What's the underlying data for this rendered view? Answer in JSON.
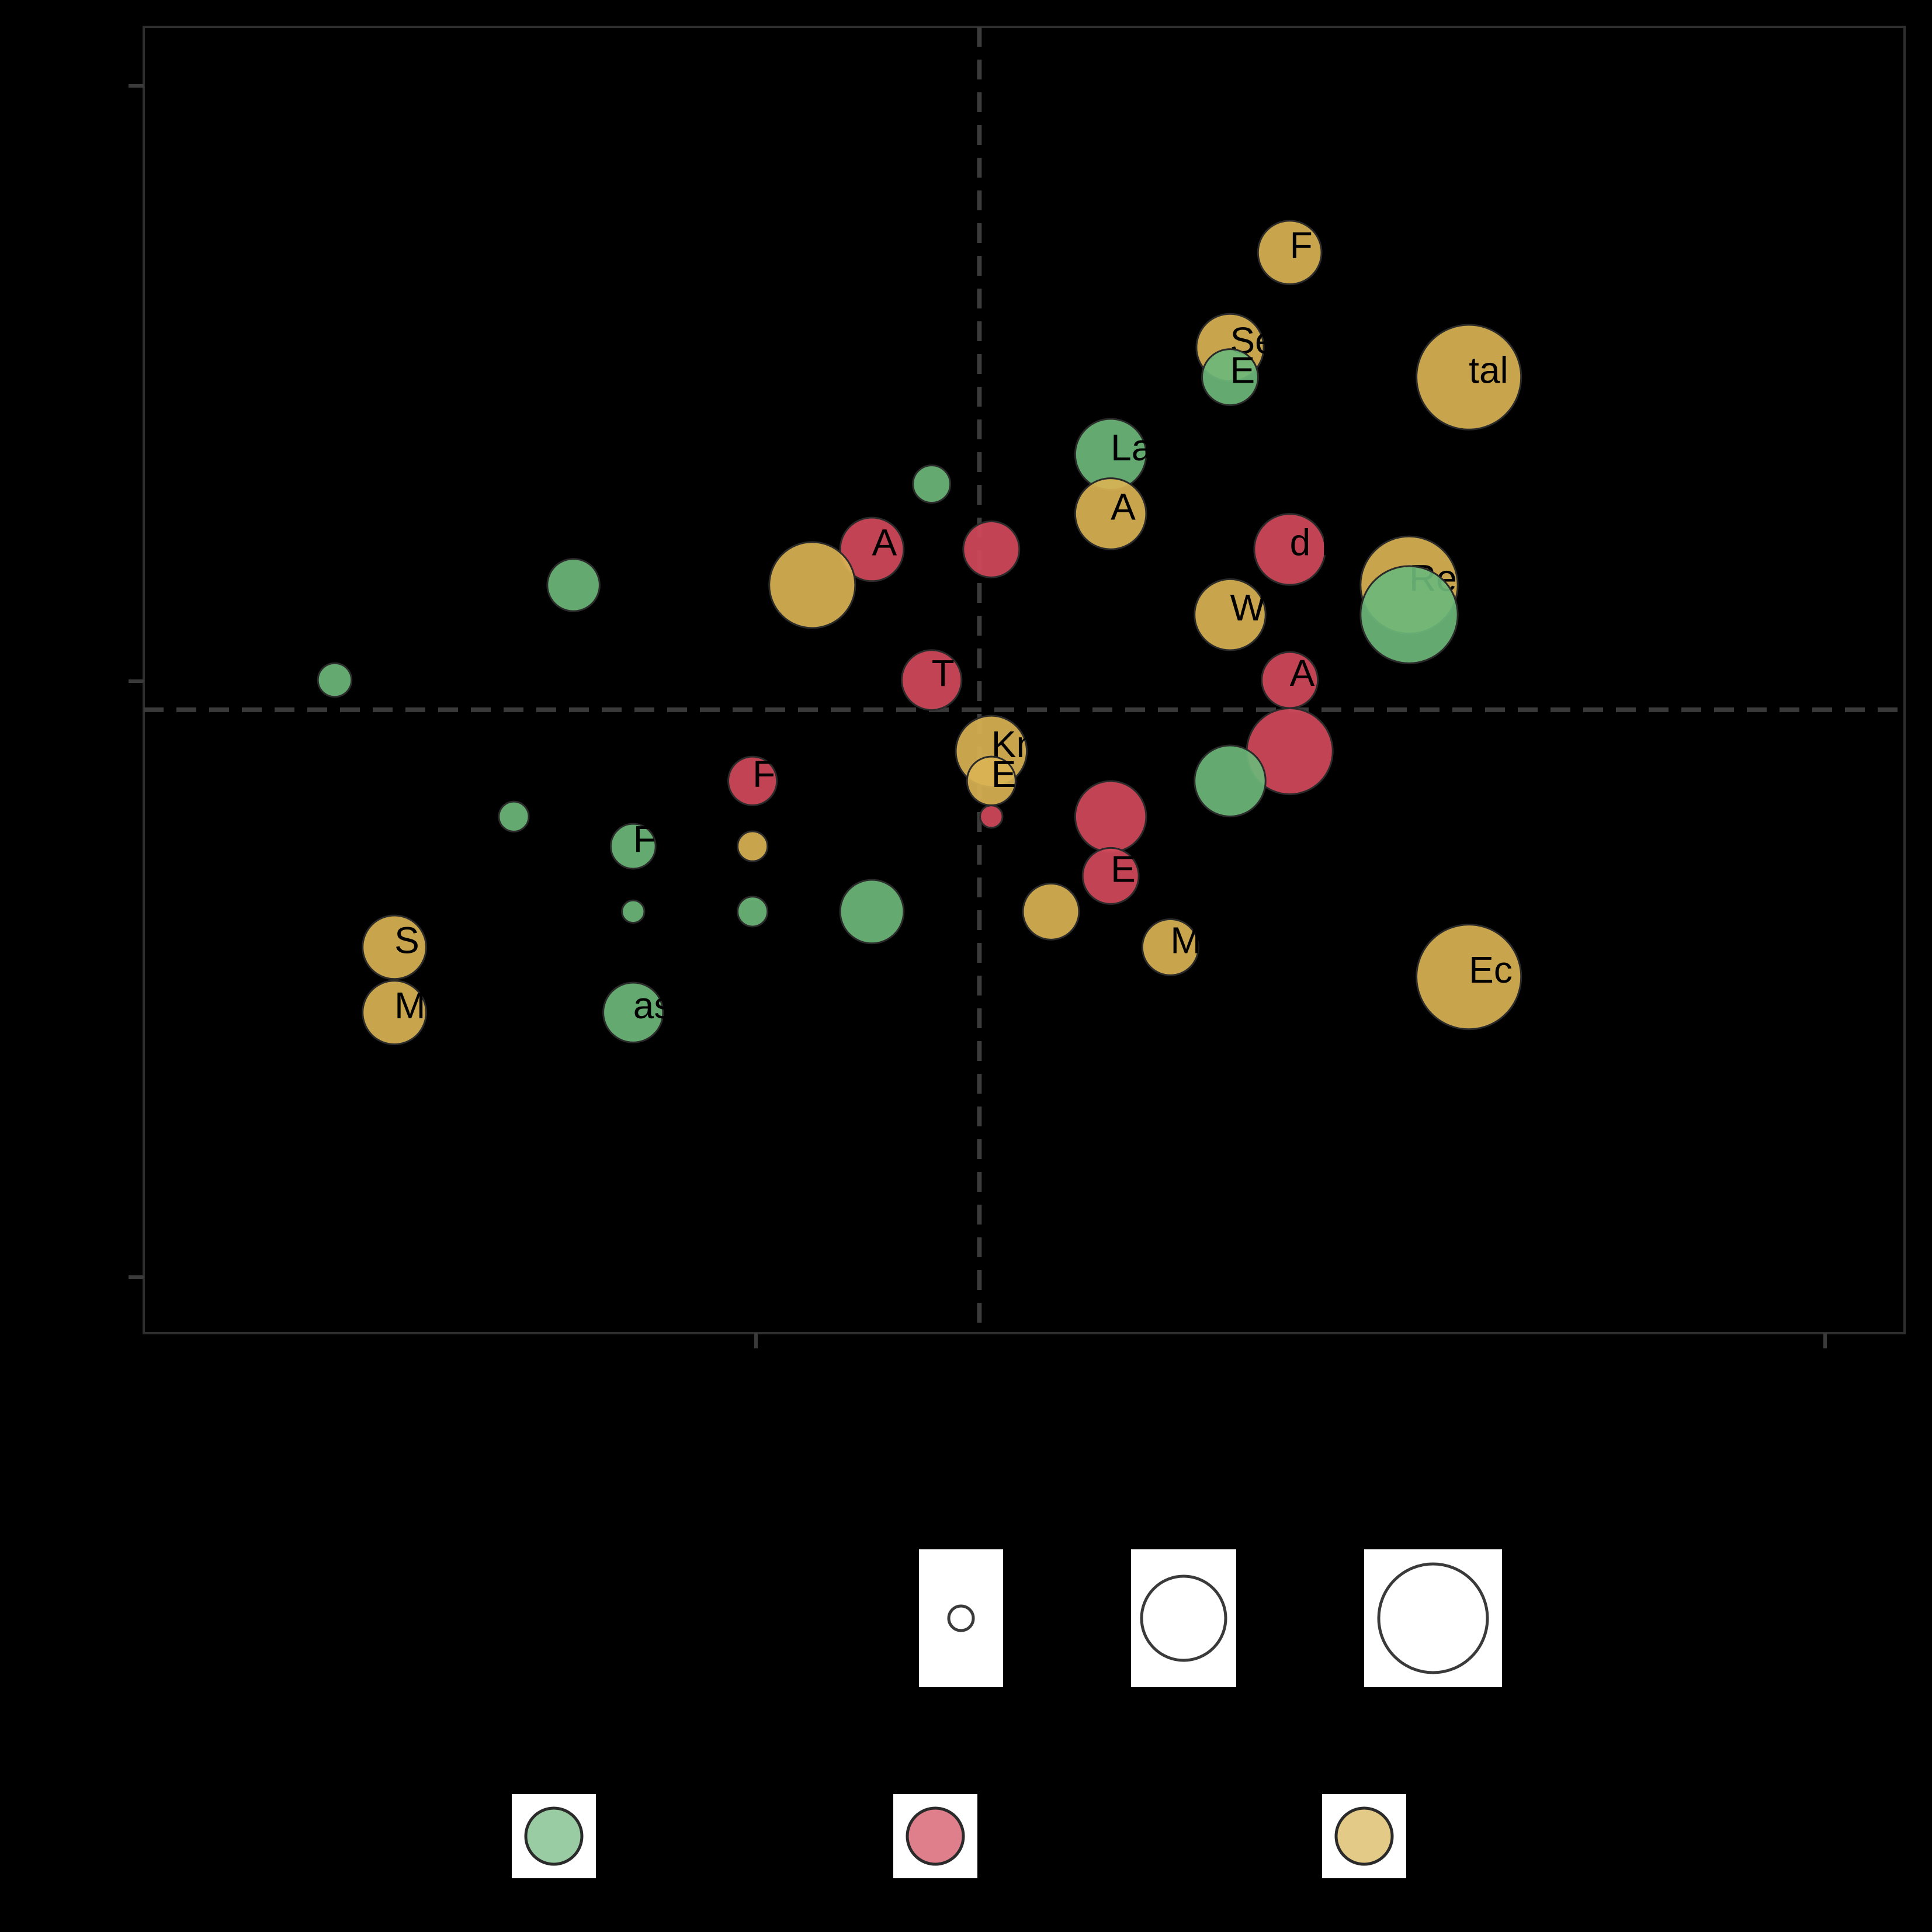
{
  "chart_data": {
    "type": "scatter",
    "title": "",
    "xlabel": "",
    "ylabel": "",
    "xlim": [
      -1.4,
      1.55
    ],
    "ylim": [
      -1.05,
      1.15
    ],
    "x_ref_line": 0,
    "y_ref_line": 0,
    "grid": false,
    "colors": {
      "green": "#6db77a",
      "red": "#d1495b",
      "yellow": "#d9b354",
      "background": "#000000",
      "axis": "#3a3a3a",
      "legend_box": "#ffffff"
    },
    "size_legend_levels": [
      1,
      2,
      3
    ],
    "color_legend_keys": [
      "green",
      "red",
      "yellow"
    ],
    "points": [
      {
        "label": "F",
        "x": 0.52,
        "y": 0.77,
        "size": 1.7,
        "color": "yellow"
      },
      {
        "label": "Se",
        "x": 0.42,
        "y": 0.61,
        "size": 1.8,
        "color": "yellow"
      },
      {
        "label": "E",
        "x": 0.42,
        "y": 0.56,
        "size": 1.5,
        "color": "green"
      },
      {
        "label": "tal",
        "x": 0.82,
        "y": 0.56,
        "size": 2.8,
        "color": "yellow"
      },
      {
        "label": "La",
        "x": 0.22,
        "y": 0.43,
        "size": 1.9,
        "color": "green"
      },
      {
        "label": "",
        "x": -0.08,
        "y": 0.38,
        "size": 1.0,
        "color": "green"
      },
      {
        "label": "A",
        "x": 0.22,
        "y": 0.33,
        "size": 1.9,
        "color": "yellow"
      },
      {
        "label": "A",
        "x": -0.18,
        "y": 0.27,
        "size": 1.7,
        "color": "red"
      },
      {
        "label": "",
        "x": 0.02,
        "y": 0.27,
        "size": 1.5,
        "color": "red"
      },
      {
        "label": "d Fi",
        "x": 0.52,
        "y": 0.27,
        "size": 1.9,
        "color": "red"
      },
      {
        "label": "",
        "x": -0.28,
        "y": 0.21,
        "size": 2.3,
        "color": "yellow"
      },
      {
        "label": "Re",
        "x": 0.72,
        "y": 0.21,
        "size": 2.6,
        "color": "yellow"
      },
      {
        "label": "",
        "x": -0.68,
        "y": 0.21,
        "size": 1.4,
        "color": "green"
      },
      {
        "label": "",
        "x": 0.72,
        "y": 0.16,
        "size": 2.6,
        "color": "green"
      },
      {
        "label": "W",
        "x": 0.42,
        "y": 0.16,
        "size": 1.9,
        "color": "yellow"
      },
      {
        "label": "A",
        "x": 0.52,
        "y": 0.05,
        "size": 1.5,
        "color": "red"
      },
      {
        "label": "",
        "x": -1.08,
        "y": 0.05,
        "size": 0.9,
        "color": "green"
      },
      {
        "label": "T",
        "x": -0.08,
        "y": 0.05,
        "size": 1.6,
        "color": "red"
      },
      {
        "label": "Kn",
        "x": 0.02,
        "y": -0.07,
        "size": 1.9,
        "color": "yellow"
      },
      {
        "label": "",
        "x": 0.52,
        "y": -0.07,
        "size": 2.3,
        "color": "red"
      },
      {
        "label": "E",
        "x": 0.02,
        "y": -0.12,
        "size": 1.3,
        "color": "yellow"
      },
      {
        "label": "",
        "x": 0.42,
        "y": -0.12,
        "size": 1.9,
        "color": "green"
      },
      {
        "label": "F",
        "x": -0.38,
        "y": -0.12,
        "size": 1.3,
        "color": "red"
      },
      {
        "label": "",
        "x": 0.22,
        "y": -0.18,
        "size": 1.9,
        "color": "red"
      },
      {
        "label": "",
        "x": 0.02,
        "y": -0.18,
        "size": 0.6,
        "color": "red"
      },
      {
        "label": "",
        "x": -0.78,
        "y": -0.18,
        "size": 0.8,
        "color": "green"
      },
      {
        "label": "F",
        "x": -0.58,
        "y": -0.23,
        "size": 1.2,
        "color": "green"
      },
      {
        "label": "",
        "x": -0.38,
        "y": -0.23,
        "size": 0.8,
        "color": "yellow"
      },
      {
        "label": "E",
        "x": 0.22,
        "y": -0.28,
        "size": 1.5,
        "color": "red"
      },
      {
        "label": "",
        "x": -0.58,
        "y": -0.34,
        "size": 0.6,
        "color": "green"
      },
      {
        "label": "",
        "x": -0.38,
        "y": -0.34,
        "size": 0.8,
        "color": "green"
      },
      {
        "label": "",
        "x": -0.18,
        "y": -0.34,
        "size": 1.7,
        "color": "green"
      },
      {
        "label": "",
        "x": 0.12,
        "y": -0.34,
        "size": 1.5,
        "color": "yellow"
      },
      {
        "label": "S",
        "x": -0.98,
        "y": -0.4,
        "size": 1.7,
        "color": "yellow"
      },
      {
        "label": "M",
        "x": 0.32,
        "y": -0.4,
        "size": 1.5,
        "color": "yellow"
      },
      {
        "label": "Ec",
        "x": 0.82,
        "y": -0.45,
        "size": 2.8,
        "color": "yellow"
      },
      {
        "label": "M",
        "x": -0.98,
        "y": -0.51,
        "size": 1.7,
        "color": "yellow"
      },
      {
        "label": "as",
        "x": -0.58,
        "y": -0.51,
        "size": 1.6,
        "color": "green"
      }
    ]
  }
}
